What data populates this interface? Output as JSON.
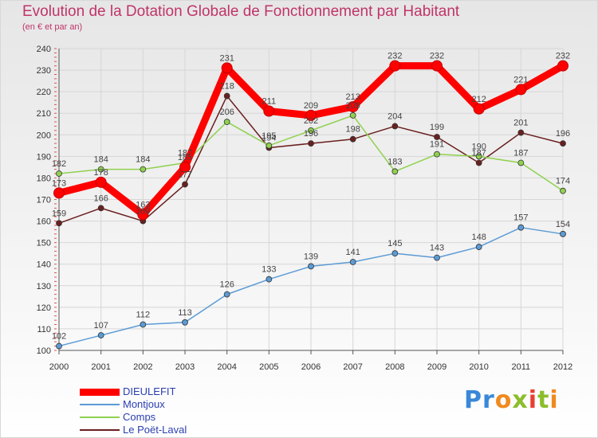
{
  "header": {
    "title": "Evolution de la Dotation Globale de Fonctionnement par Habitant",
    "subtitle": "(en € et par an)"
  },
  "logo": {
    "text": "Proxiti"
  },
  "chart_data": {
    "type": "line",
    "title": "Evolution de la Dotation Globale de Fonctionnement par Habitant",
    "subtitle": "(en € et par an)",
    "xlabel": "",
    "ylabel": "",
    "x": [
      "2000",
      "2001",
      "2002",
      "2003",
      "2004",
      "2005",
      "2006",
      "2007",
      "2008",
      "2009",
      "2010",
      "2011",
      "2012"
    ],
    "ylim": [
      100,
      240
    ],
    "yticks": [
      "100",
      "110",
      "120",
      "130",
      "140",
      "150",
      "160",
      "170",
      "180",
      "190",
      "200",
      "210",
      "220",
      "230",
      "240"
    ],
    "grid": true,
    "legend_position": "bottom-left",
    "series": [
      {
        "name": "DIEULEFIT",
        "color": "#ff0000",
        "values": [
          173,
          178,
          163,
          185,
          231,
          211,
          209,
          213,
          232,
          232,
          212,
          221,
          232
        ]
      },
      {
        "name": "Montjoux",
        "color": "#5b9bd5",
        "values": [
          102,
          107,
          112,
          113,
          126,
          133,
          139,
          141,
          145,
          143,
          148,
          157,
          154
        ]
      },
      {
        "name": "Comps",
        "color": "#8fd14f",
        "values": [
          182,
          184,
          184,
          187,
          206,
          195,
          202,
          209,
          183,
          191,
          190,
          187,
          174
        ]
      },
      {
        "name": "Le Poët-Laval",
        "color": "#6b1f1f",
        "values": [
          159,
          166,
          160,
          177,
          218,
          194,
          196,
          198,
          204,
          199,
          187,
          201,
          196
        ]
      }
    ]
  }
}
